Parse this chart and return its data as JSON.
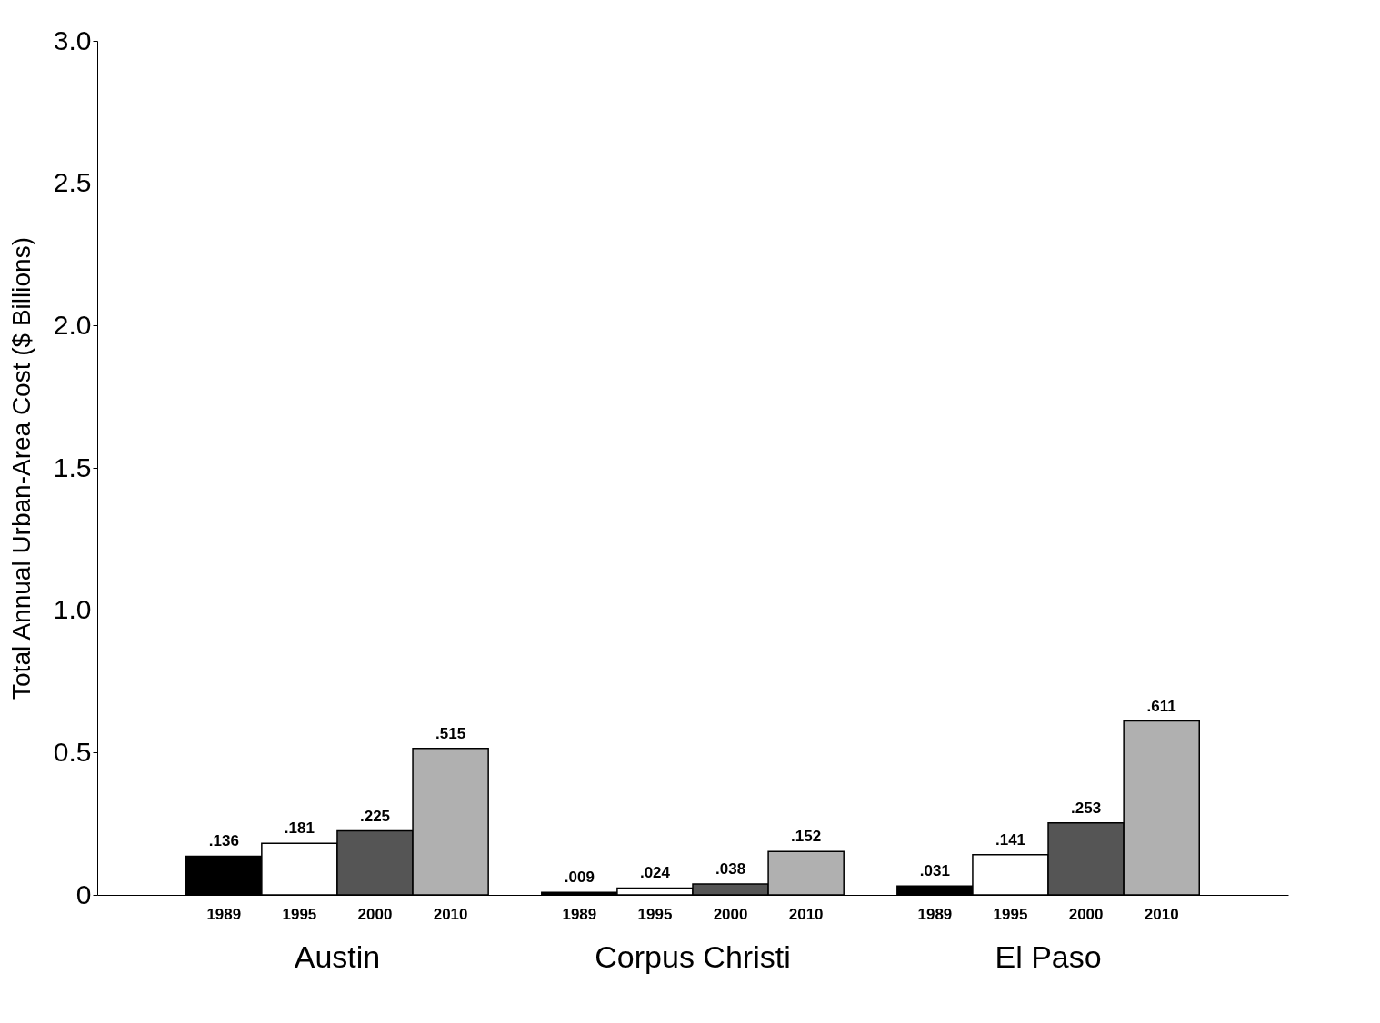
{
  "chart_data": {
    "type": "bar",
    "ylabel": "Total Annual Urban-Area Cost ($ Billions)",
    "categories": [
      "Austin",
      "Corpus Christi",
      "El Paso"
    ],
    "series": [
      {
        "name": "1989",
        "color": "#000000",
        "values": [
          0.136,
          0.009,
          0.031
        ],
        "value_labels": [
          ".136",
          ".009",
          ".031"
        ]
      },
      {
        "name": "1995",
        "color": "#ffffff",
        "values": [
          0.181,
          0.024,
          0.141
        ],
        "value_labels": [
          ".181",
          ".024",
          ".141"
        ]
      },
      {
        "name": "2000",
        "color": "#555555",
        "values": [
          0.225,
          0.038,
          0.253
        ],
        "value_labels": [
          ".225",
          ".038",
          ".253"
        ]
      },
      {
        "name": "2010",
        "color": "#b0b0b0",
        "values": [
          0.515,
          0.152,
          0.611
        ],
        "value_labels": [
          ".515",
          ".152",
          ".611"
        ]
      }
    ],
    "ylim": [
      0,
      3
    ],
    "yticks": [
      0,
      0.5,
      {
        "value": 1,
        "label": "1.0"
      },
      1.5,
      {
        "value": 2,
        "label": "2.0"
      },
      2.5,
      {
        "value": 3,
        "label": "3.0"
      }
    ],
    "grid": false,
    "legend": false
  }
}
